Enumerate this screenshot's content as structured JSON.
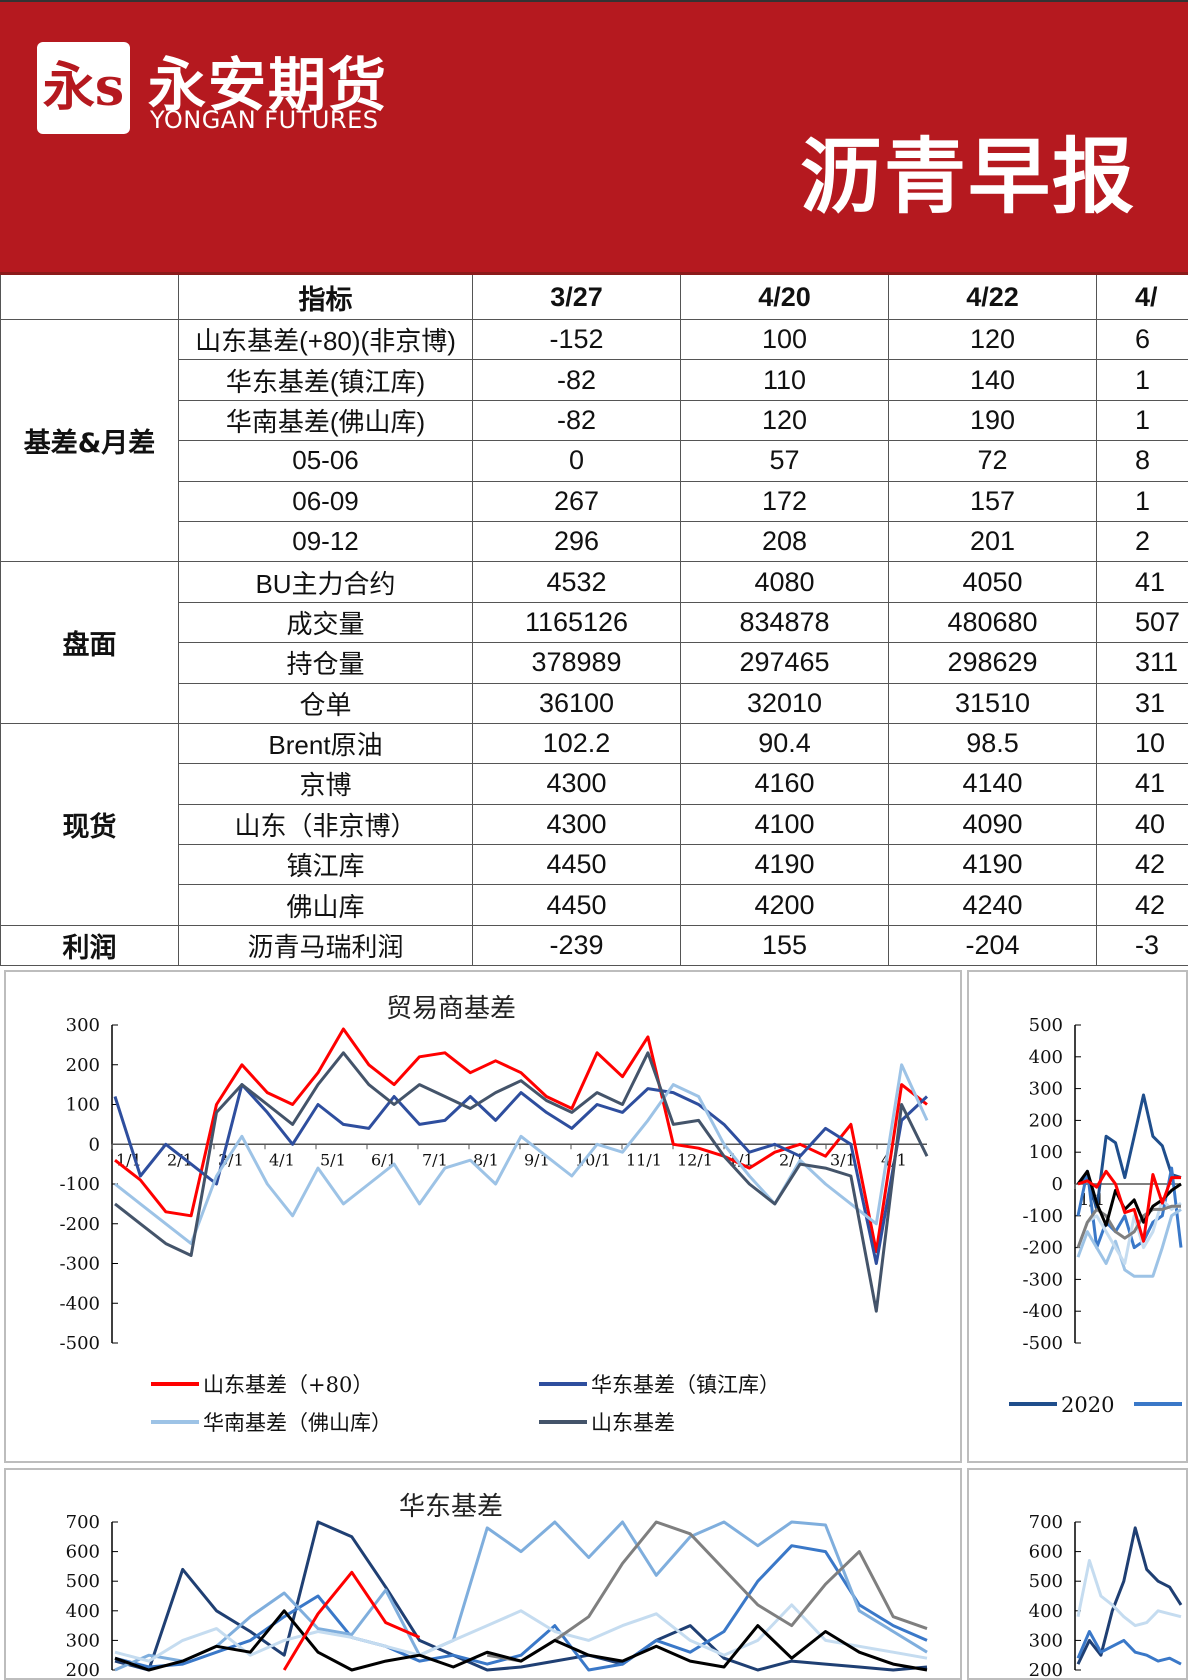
{
  "header": {
    "logo_mark": "永s",
    "brand_cn": "永安期货",
    "brand_en": "YONGAN FUTURES",
    "title": "沥青早报",
    "color": "#B5191F"
  },
  "table": {
    "columns": [
      "",
      "指标",
      "3/27",
      "4/20",
      "4/22",
      "4/"
    ],
    "sections": [
      {
        "category": "基差&月差",
        "rows": [
          {
            "name": "山东基差(+80)(非京博)",
            "values": [
              "-152",
              "100",
              "120",
              "6"
            ]
          },
          {
            "name": "华东基差(镇江库)",
            "values": [
              "-82",
              "110",
              "140",
              "1"
            ]
          },
          {
            "name": "华南基差(佛山库)",
            "values": [
              "-82",
              "120",
              "190",
              "1"
            ]
          },
          {
            "name": "05-06",
            "values": [
              "0",
              "57",
              "72",
              "8"
            ]
          },
          {
            "name": "06-09",
            "values": [
              "267",
              "172",
              "157",
              "1"
            ]
          },
          {
            "name": "09-12",
            "values": [
              "296",
              "208",
              "201",
              "2"
            ]
          }
        ]
      },
      {
        "category": "盘面",
        "rows": [
          {
            "name": "BU主力合约",
            "values": [
              "4532",
              "4080",
              "4050",
              "41"
            ]
          },
          {
            "name": "成交量",
            "values": [
              "1165126",
              "834878",
              "480680",
              "507"
            ]
          },
          {
            "name": "持仓量",
            "values": [
              "378989",
              "297465",
              "298629",
              "311"
            ]
          },
          {
            "name": "仓单",
            "values": [
              "36100",
              "32010",
              "31510",
              "31"
            ]
          }
        ]
      },
      {
        "category": "现货",
        "rows": [
          {
            "name": "Brent原油",
            "values": [
              "102.2",
              "90.4",
              "98.5",
              "10"
            ]
          },
          {
            "name": "京博",
            "values": [
              "4300",
              "4160",
              "4140",
              "41"
            ]
          },
          {
            "name": "山东（非京博）",
            "values": [
              "4300",
              "4100",
              "4090",
              "40"
            ]
          },
          {
            "name": "镇江库",
            "values": [
              "4450",
              "4190",
              "4190",
              "42"
            ]
          },
          {
            "name": "佛山库",
            "values": [
              "4450",
              "4200",
              "4240",
              "42"
            ]
          }
        ]
      },
      {
        "category": "利润",
        "rows": [
          {
            "name": "沥青马瑞利润",
            "values": [
              "-239",
              "155",
              "-204",
              "-3"
            ]
          }
        ]
      }
    ]
  },
  "chart_data": [
    {
      "type": "line",
      "title": "贸易商基差",
      "ylim": [
        -500,
        300
      ],
      "yticks": [
        300,
        200,
        100,
        0,
        -100,
        -200,
        -300,
        -400,
        -500
      ],
      "xticks": [
        "1/1",
        "2/1",
        "3/1",
        "4/1",
        "5/1",
        "6/1",
        "7/1",
        "8/1",
        "9/1",
        "10/1",
        "11/1",
        "12/1",
        "1/1",
        "2/1",
        "3/1",
        "4/1"
      ],
      "legend": "bottom",
      "series": [
        {
          "name": "山东基差（+80）",
          "color": "#FF0000",
          "values": [
            -40,
            -90,
            -170,
            -180,
            100,
            200,
            130,
            100,
            180,
            290,
            200,
            150,
            220,
            230,
            180,
            210,
            180,
            120,
            90,
            230,
            170,
            270,
            0,
            -10,
            -30,
            -60,
            -20,
            0,
            -30,
            50,
            -270,
            150,
            100
          ]
        },
        {
          "name": "华东基差（镇江库）",
          "color": "#2E4E9E",
          "values": [
            120,
            -80,
            0,
            -50,
            -100,
            150,
            80,
            0,
            100,
            50,
            40,
            120,
            50,
            60,
            120,
            60,
            130,
            80,
            40,
            100,
            80,
            140,
            130,
            100,
            50,
            -20,
            0,
            -30,
            40,
            0,
            -300,
            60,
            120
          ]
        },
        {
          "name": "华南基差（佛山库）",
          "color": "#9DC3E6",
          "values": [
            -100,
            -150,
            -200,
            -250,
            -80,
            20,
            -100,
            -180,
            -60,
            -150,
            -100,
            -50,
            -150,
            -60,
            -40,
            -100,
            20,
            -30,
            -80,
            0,
            -20,
            60,
            150,
            120,
            0,
            -80,
            -150,
            -40,
            -100,
            -150,
            -200,
            200,
            60
          ]
        },
        {
          "name": "山东基差",
          "color": "#44546A",
          "values": [
            -150,
            -200,
            -250,
            -280,
            80,
            150,
            100,
            50,
            150,
            230,
            150,
            100,
            150,
            120,
            90,
            130,
            160,
            110,
            80,
            130,
            100,
            230,
            50,
            60,
            -30,
            -100,
            -150,
            -50,
            -60,
            -80,
            -420,
            100,
            -30
          ]
        }
      ]
    },
    {
      "type": "line",
      "title": "",
      "ylim": [
        -500,
        500
      ],
      "yticks": [
        500,
        400,
        300,
        200,
        100,
        0,
        -100,
        -200,
        -300,
        -400,
        -500
      ],
      "xticks": [
        "1/1"
      ],
      "legend": "bottom",
      "series": [
        {
          "name": "2020",
          "color": "#1F4E8C",
          "values": [
            0,
            30,
            -80,
            150,
            130,
            20,
            150,
            280,
            150,
            120,
            30,
            20
          ]
        },
        {
          "color": "#3A78C8",
          "values": [
            -100,
            40,
            -200,
            -120,
            -150,
            -100,
            -200,
            -180,
            -120,
            -100,
            50,
            -200
          ]
        },
        {
          "color": "#9DC3E6",
          "values": [
            -230,
            -150,
            -200,
            -250,
            -180,
            -270,
            -290,
            -290,
            -290,
            -200,
            -100,
            -80
          ]
        },
        {
          "color": "#C5DCF0",
          "values": [
            -200,
            -120,
            -100,
            -150,
            -200,
            -250,
            -100,
            -200,
            -150,
            -50,
            -80,
            -60
          ]
        },
        {
          "color": "#7F7F7F",
          "values": [
            -200,
            -120,
            -80,
            -100,
            -150,
            -170,
            -150,
            -100,
            -80,
            -80,
            -70,
            -70
          ]
        },
        {
          "color": "#000000",
          "values": [
            0,
            40,
            -60,
            -130,
            -20,
            -80,
            -50,
            -120,
            -70,
            -50,
            -20,
            0
          ]
        },
        {
          "color": "#FF0000",
          "values": [
            0,
            10,
            -10,
            40,
            0,
            -90,
            -80,
            -180,
            30,
            -60,
            20,
            20
          ]
        }
      ]
    },
    {
      "type": "line",
      "title": "华东基差",
      "ylim": [
        200,
        700
      ],
      "yticks": [
        700,
        600,
        500,
        400,
        300,
        200
      ],
      "series": [
        {
          "color": "#1F3F73",
          "values": [
            230,
            200,
            540,
            400,
            330,
            250,
            700,
            650,
            480,
            300,
            250,
            200,
            210,
            230,
            250,
            220,
            300,
            350,
            240,
            200,
            230,
            220,
            210,
            200,
            210
          ]
        },
        {
          "color": "#3A78C8",
          "values": [
            240,
            210,
            220,
            260,
            300,
            380,
            450,
            310,
            280,
            230,
            250,
            220,
            250,
            350,
            200,
            220,
            300,
            260,
            330,
            500,
            620,
            600,
            420,
            350,
            300
          ]
        },
        {
          "color": "#7FAEDD",
          "values": [
            200,
            250,
            230,
            280,
            380,
            460,
            340,
            320,
            470,
            250,
            300,
            680,
            600,
            700,
            580,
            700,
            520,
            650,
            700,
            620,
            700,
            690,
            400,
            330,
            260
          ]
        },
        {
          "color": "#C5DCF0",
          "values": [
            260,
            230,
            300,
            340,
            250,
            300,
            330,
            310,
            280,
            250,
            300,
            350,
            400,
            330,
            300,
            350,
            390,
            300,
            250,
            300,
            420,
            300,
            280,
            260,
            240
          ]
        },
        {
          "color": "#7F7F7F",
          "values": [
            null,
            null,
            null,
            null,
            null,
            null,
            null,
            null,
            null,
            null,
            null,
            250,
            230,
            300,
            380,
            560,
            700,
            660,
            540,
            420,
            350,
            490,
            600,
            380,
            340
          ]
        },
        {
          "color": "#000000",
          "values": [
            240,
            200,
            230,
            280,
            260,
            400,
            260,
            200,
            230,
            250,
            210,
            260,
            230,
            300,
            250,
            230,
            280,
            230,
            210,
            350,
            240,
            330,
            260,
            220,
            200
          ]
        },
        {
          "color": "#FF0000",
          "values": [
            null,
            null,
            null,
            null,
            null,
            200,
            390,
            530,
            360,
            310,
            null,
            null,
            null,
            null,
            null,
            null,
            null,
            null,
            null,
            null,
            null,
            null,
            null,
            null,
            null
          ]
        }
      ]
    },
    {
      "type": "line",
      "title": "",
      "ylim": [
        200,
        700
      ],
      "yticks": [
        700,
        600,
        500,
        400,
        300,
        200
      ],
      "series": [
        {
          "color": "#1F3F73",
          "values": [
            220,
            300,
            250,
            400,
            500,
            680,
            540,
            500,
            480,
            420
          ]
        },
        {
          "color": "#3A78C8",
          "values": [
            240,
            330,
            260,
            280,
            300,
            260,
            250,
            230,
            240,
            220
          ]
        },
        {
          "color": "#C5DCF0",
          "values": [
            380,
            570,
            450,
            420,
            380,
            350,
            360,
            400,
            390,
            380
          ]
        }
      ]
    }
  ]
}
